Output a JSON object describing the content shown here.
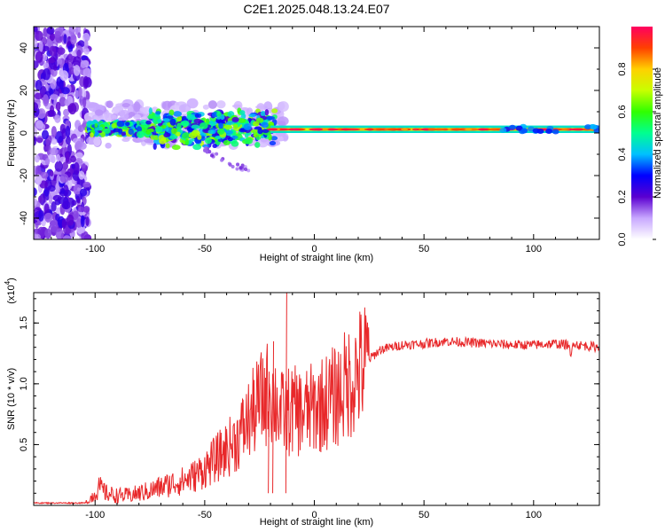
{
  "title": "C2E1.2025.048.13.24.E07",
  "chart_data": [
    {
      "type": "heatmap",
      "name": "spectrogram",
      "xlabel": "Height of straight line (km)",
      "ylabel": "Frequency (Hz)",
      "xlim": [
        -128,
        130
      ],
      "ylim": [
        -50,
        50
      ],
      "xticks": [
        -100,
        -50,
        0,
        50,
        100
      ],
      "yticks": [
        -40,
        -20,
        0,
        20,
        40
      ],
      "ytick_labels": [
        "-40",
        "-20",
        "0",
        "20",
        "40"
      ],
      "colorbar": {
        "label": "Normalized spectral amplitude",
        "range": [
          0.0,
          1.0
        ],
        "ticks": [
          0.0,
          0.2,
          0.4,
          0.6,
          0.8
        ],
        "tick_labels": [
          "0.0",
          "0.2",
          "0.4",
          "0.6",
          "0.8"
        ]
      },
      "features": [
        {
          "x_range": [
            -128,
            -103
          ],
          "freq_range": [
            -50,
            50
          ],
          "amplitude": 0.1
        },
        {
          "x_range": [
            -103,
            -73
          ],
          "freq_range": [
            0,
            4
          ],
          "amplitude": 0.55
        },
        {
          "x_range": [
            -73,
            -20
          ],
          "freq_range": [
            -8,
            10
          ],
          "amplitude": 0.4
        },
        {
          "x_range": [
            -20,
            130
          ],
          "freq_range": [
            0,
            3
          ],
          "amplitude": 0.9
        }
      ]
    },
    {
      "type": "line",
      "name": "snr",
      "xlabel": "Height of straight line (km)",
      "ylabel": "SNR (10 * v/v)",
      "yscale_label_base": "(x10",
      "yscale_label_exp": "4",
      "yscale_label_close": ")",
      "xlim": [
        -128,
        130
      ],
      "ylim": [
        0,
        1.75
      ],
      "xticks": [
        -100,
        -50,
        0,
        50,
        100
      ],
      "yticks": [
        0.5,
        1.0,
        1.5
      ],
      "ytick_labels": [
        "0.5",
        "1.0",
        "1.5"
      ],
      "series": [
        {
          "name": "SNR",
          "color": "#e8282a",
          "x": [
            -128,
            -104,
            -100,
            -98,
            -95,
            -90,
            -85,
            -80,
            -75,
            -70,
            -65,
            -60,
            -55,
            -50,
            -45,
            -40,
            -35,
            -30,
            -25,
            -20,
            -15,
            -10,
            -5,
            0,
            5,
            10,
            15,
            20,
            25,
            30,
            35,
            40,
            50,
            60,
            70,
            80,
            90,
            100,
            110,
            116,
            117,
            118,
            120,
            125,
            130
          ],
          "y": [
            0.02,
            0.02,
            0.1,
            0.15,
            0.1,
            0.08,
            0.08,
            0.1,
            0.12,
            0.15,
            0.18,
            0.2,
            0.24,
            0.3,
            0.38,
            0.46,
            0.55,
            0.7,
            0.85,
            0.95,
            0.75,
            0.78,
            0.76,
            0.8,
            0.85,
            0.9,
            1.0,
            1.1,
            1.2,
            1.28,
            1.3,
            1.32,
            1.33,
            1.35,
            1.34,
            1.33,
            1.32,
            1.32,
            1.33,
            1.32,
            1.2,
            1.35,
            1.32,
            1.31,
            1.3
          ]
        }
      ],
      "spikes": [
        {
          "x": -19,
          "y": 1.35
        },
        {
          "x": -13,
          "y": 1.75
        },
        {
          "x": -21,
          "y": 1.1
        }
      ]
    }
  ]
}
